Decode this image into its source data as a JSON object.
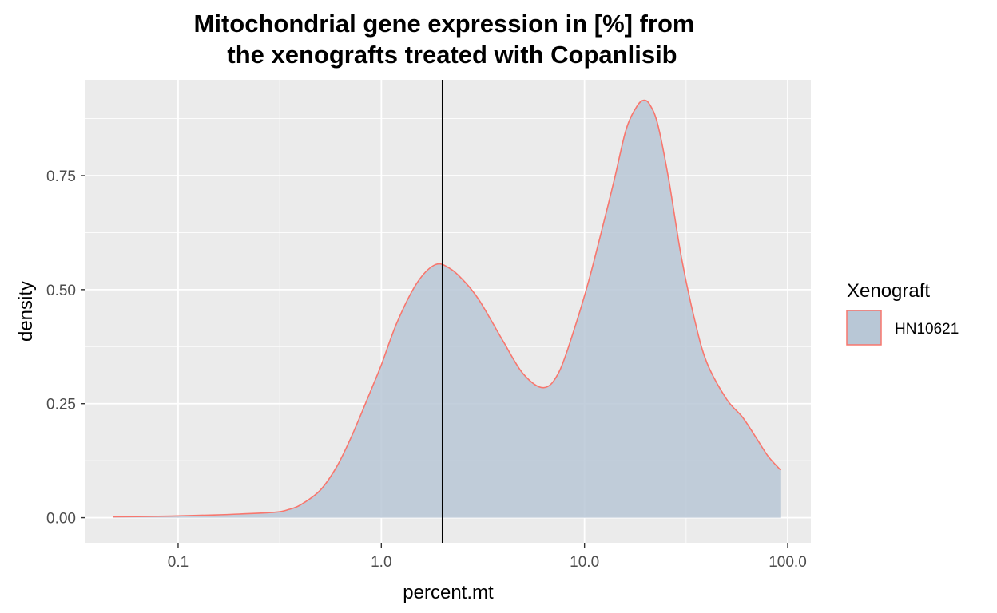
{
  "chart_data": {
    "type": "area",
    "title_lines": [
      "Mitochondrial gene expression in [%] from",
      "the xenografts treated with Copanlisib"
    ],
    "xlabel": "percent.mt",
    "ylabel": "density",
    "x_scale": "log10",
    "xlim": [
      0.035,
      130
    ],
    "ylim": [
      -0.055,
      0.96
    ],
    "x_ticks": [
      0.1,
      1.0,
      10.0,
      100.0
    ],
    "x_tick_labels": [
      "0.1",
      "1.0",
      "10.0",
      "100.0"
    ],
    "y_ticks": [
      0.0,
      0.25,
      0.5,
      0.75
    ],
    "y_tick_labels": [
      "0.00",
      "0.25",
      "0.50",
      "0.75"
    ],
    "grid": true,
    "vline_x": 2.0,
    "legend": {
      "title": "Xenograft",
      "position": "right"
    },
    "series": [
      {
        "name": "HN10621",
        "fill_color": "#B8C7D6",
        "line_color": "#F8766D",
        "x": [
          0.048,
          0.08,
          0.1,
          0.15,
          0.2,
          0.3,
          0.35,
          0.4,
          0.5,
          0.6,
          0.7,
          0.8,
          0.9,
          1.0,
          1.2,
          1.5,
          1.85,
          2.2,
          2.6,
          3.0,
          3.5,
          4.0,
          5.0,
          6.3,
          7.5,
          9.0,
          10.5,
          12.0,
          14.0,
          16.0,
          18.0,
          19.5,
          21.0,
          23.0,
          26.0,
          30.0,
          35.0,
          40.0,
          50.0,
          60.0,
          70.0,
          80.0,
          92.0
        ],
        "y": [
          0.002,
          0.003,
          0.004,
          0.006,
          0.008,
          0.012,
          0.018,
          0.028,
          0.06,
          0.11,
          0.17,
          0.23,
          0.285,
          0.335,
          0.43,
          0.515,
          0.555,
          0.545,
          0.515,
          0.48,
          0.43,
          0.385,
          0.315,
          0.285,
          0.32,
          0.42,
          0.52,
          0.62,
          0.74,
          0.85,
          0.9,
          0.915,
          0.905,
          0.86,
          0.74,
          0.57,
          0.43,
          0.34,
          0.26,
          0.22,
          0.175,
          0.135,
          0.105
        ]
      }
    ]
  }
}
